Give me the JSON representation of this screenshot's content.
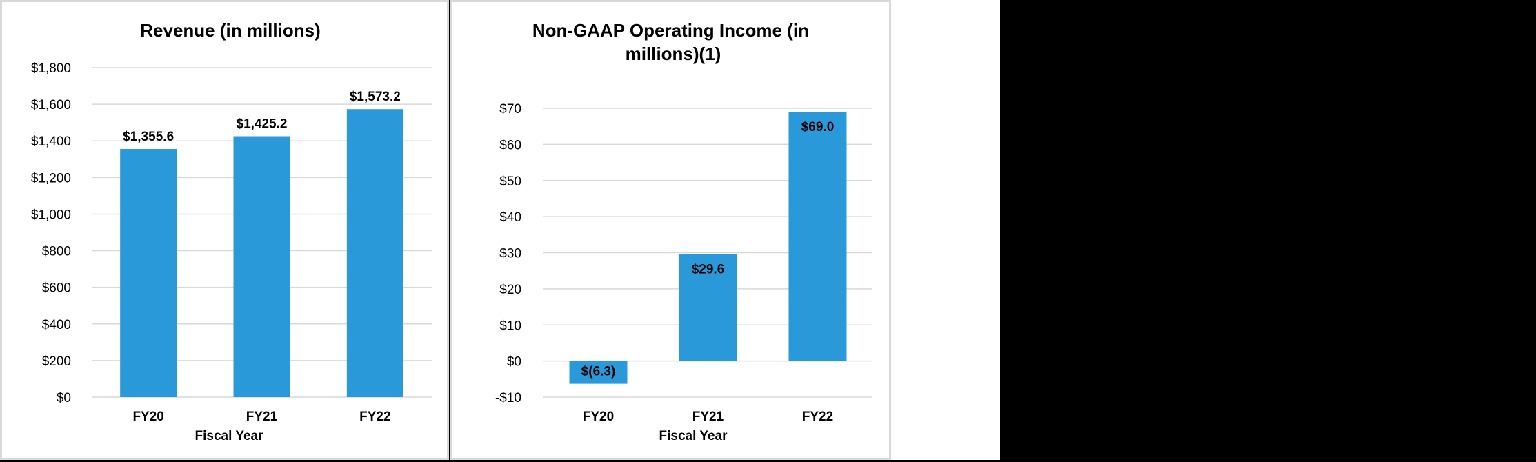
{
  "chart_data": [
    {
      "type": "bar",
      "title": "Revenue (in millions)",
      "xlabel": "Fiscal Year",
      "ylabel": "",
      "categories": [
        "FY20",
        "FY21",
        "FY22"
      ],
      "values": [
        1355.6,
        1425.2,
        1573.2
      ],
      "data_labels": [
        "$1,355.6",
        "$1,425.2",
        "$1,573.2"
      ],
      "ylim": [
        0,
        1800
      ],
      "yticks": [
        0,
        200,
        400,
        600,
        800,
        1000,
        1200,
        1400,
        1600,
        1800
      ],
      "ytick_labels": [
        "$0",
        "$200",
        "$400",
        "$600",
        "$800",
        "$1,000",
        "$1,200",
        "$1,400",
        "$1,600",
        "$1,800"
      ],
      "label_position": "outside",
      "grid": true,
      "bar_color": "#2a99d9"
    },
    {
      "type": "bar",
      "title": "Non-GAAP Operating Income (in millions)(1)",
      "xlabel": "Fiscal Year",
      "ylabel": "",
      "categories": [
        "FY20",
        "FY21",
        "FY22"
      ],
      "values": [
        -6.3,
        29.6,
        69.0
      ],
      "data_labels": [
        "$(6.3)",
        "$29.6",
        "$69.0"
      ],
      "ylim": [
        -10,
        70
      ],
      "yticks": [
        -10,
        0,
        10,
        20,
        30,
        40,
        50,
        60,
        70
      ],
      "ytick_labels": [
        "-$10",
        "$0",
        "$10",
        "$20",
        "$30",
        "$40",
        "$50",
        "$60",
        "$70"
      ],
      "label_position": "inside",
      "grid": true,
      "bar_color": "#2a99d9"
    }
  ]
}
